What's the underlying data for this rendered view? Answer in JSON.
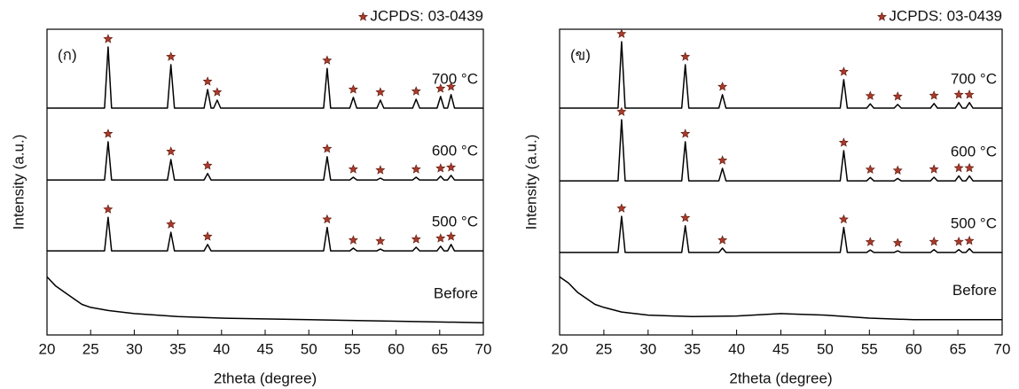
{
  "chart_data": [
    {
      "type": "line",
      "panel_label": "(ก)",
      "x_label": "2theta (degree)",
      "y_label": "Intensity (a.u.)",
      "xlim": [
        20,
        70
      ],
      "xticks": [
        20,
        25,
        30,
        35,
        40,
        45,
        50,
        55,
        60,
        65,
        70
      ],
      "ylim": [
        0,
        100
      ],
      "legend": "top-right",
      "series": [
        {
          "name": "Before",
          "color": "#000000",
          "x": [
            20,
            21,
            22,
            23,
            24,
            25,
            27,
            30,
            35,
            40,
            50,
            60,
            70
          ],
          "values": [
            19,
            16,
            14,
            12,
            10,
            9,
            8,
            7,
            6,
            5.5,
            5,
            4.5,
            4
          ]
        },
        {
          "name": "500 °C",
          "color": "#000000",
          "x": [
            20,
            26.6,
            27,
            27.4,
            33.8,
            34.2,
            34.6,
            38.0,
            38.4,
            38.8,
            51.7,
            52.1,
            52.5,
            54.7,
            55.1,
            55.5,
            57.8,
            58.2,
            58.6,
            61.9,
            62.3,
            62.7,
            64.7,
            65.1,
            65.5,
            65.9,
            66.3,
            66.7,
            70
          ],
          "values": [
            27.5,
            27.5,
            38.5,
            27.5,
            27.5,
            33.6,
            27.5,
            27.5,
            29.6,
            27.5,
            27.5,
            35.2,
            27.5,
            27.5,
            28.4,
            27.5,
            27.5,
            28.1,
            27.5,
            27.5,
            28.7,
            27.5,
            27.5,
            29.0,
            27.5,
            27.5,
            29.6,
            27.5,
            27.5
          ]
        },
        {
          "name": "600 °C",
          "color": "#000000",
          "x": [
            20,
            26.6,
            27,
            27.4,
            33.8,
            34.2,
            34.6,
            38.0,
            38.4,
            38.8,
            51.7,
            52.1,
            52.5,
            54.7,
            55.1,
            55.5,
            57.8,
            58.2,
            58.6,
            61.9,
            62.3,
            62.7,
            64.7,
            65.1,
            65.5,
            65.9,
            66.3,
            66.7,
            70
          ],
          "values": [
            50.7,
            50.7,
            63.2,
            50.7,
            50.7,
            57.4,
            50.7,
            50.7,
            52.8,
            50.7,
            50.7,
            58.3,
            50.7,
            50.7,
            51.6,
            50.7,
            50.7,
            51.3,
            50.7,
            50.7,
            51.6,
            50.7,
            50.7,
            51.9,
            50.7,
            50.7,
            52.2,
            50.7,
            50.7
          ]
        },
        {
          "name": "700 °C",
          "color": "#000000",
          "x": [
            20,
            26.6,
            27,
            27.4,
            33.8,
            34.2,
            34.6,
            38.0,
            38.4,
            38.8,
            39.1,
            39.5,
            39.9,
            51.7,
            52.1,
            52.5,
            54.7,
            55.1,
            55.5,
            57.8,
            58.2,
            58.6,
            61.9,
            62.3,
            62.7,
            64.7,
            65.1,
            65.5,
            65.9,
            66.3,
            66.7,
            70
          ],
          "values": [
            74.2,
            74.2,
            94.2,
            74.2,
            74.2,
            88.4,
            74.2,
            74.2,
            80.3,
            74.2,
            74.2,
            76.8,
            74.2,
            74.2,
            87.2,
            74.2,
            74.2,
            77.7,
            74.2,
            74.2,
            76.8,
            74.2,
            74.2,
            77.1,
            74.2,
            74.2,
            78.0,
            74.2,
            74.2,
            78.6,
            74.2,
            74.2
          ]
        },
        {
          "name": "JCPDS: 03-0439",
          "color": "#a83a2a",
          "marker": "star",
          "x": [
            27,
            34.2,
            38.4,
            52.1,
            55.1,
            58.2,
            62.3,
            65.1,
            66.3,
            27,
            34.2,
            38.4,
            52.1,
            55.1,
            58.2,
            62.3,
            65.1,
            66.3,
            27,
            34.2,
            38.4,
            39.5,
            52.1,
            55.1,
            58.2,
            62.3,
            65.1,
            66.3
          ],
          "values": [
            41.1,
            36.2,
            32.2,
            37.8,
            31.0,
            30.7,
            31.3,
            31.6,
            32.2,
            65.8,
            60.0,
            55.4,
            60.9,
            54.2,
            53.9,
            54.2,
            54.5,
            54.8,
            96.8,
            91.0,
            82.9,
            79.4,
            89.8,
            80.3,
            79.4,
            79.7,
            80.6,
            81.2
          ]
        }
      ]
    },
    {
      "type": "line",
      "panel_label": "(ข)",
      "x_label": "2theta (degree)",
      "y_label": "Intensity (a.u.)",
      "xlim": [
        20,
        70
      ],
      "xticks": [
        20,
        25,
        30,
        35,
        40,
        45,
        50,
        55,
        60,
        65,
        70
      ],
      "ylim": [
        0,
        100
      ],
      "legend": "top-right",
      "series": [
        {
          "name": "Before",
          "color": "#000000",
          "x": [
            20,
            21,
            22,
            23,
            24,
            25,
            27,
            30,
            35,
            40,
            45,
            50,
            55,
            60,
            70
          ],
          "values": [
            19,
            17,
            14,
            12,
            10,
            9,
            7.5,
            6.5,
            6,
            6.2,
            7,
            6.5,
            5.5,
            5,
            5
          ]
        },
        {
          "name": "500 °C",
          "color": "#000000",
          "x": [
            20,
            26.6,
            27,
            27.4,
            33.8,
            34.2,
            34.6,
            38.0,
            38.4,
            38.8,
            51.7,
            52.1,
            52.5,
            54.7,
            55.1,
            55.5,
            57.8,
            58.2,
            58.6,
            61.9,
            62.3,
            62.7,
            64.7,
            65.1,
            65.5,
            65.9,
            66.3,
            66.7,
            70
          ],
          "values": [
            27,
            27,
            38.8,
            27,
            27,
            35.7,
            27,
            27,
            28.4,
            27,
            27,
            35.2,
            27,
            27,
            27.8,
            27,
            27,
            27.5,
            27,
            27,
            27.9,
            27,
            27,
            27.9,
            27,
            27,
            28.2,
            27,
            27
          ]
        },
        {
          "name": "600 °C",
          "color": "#000000",
          "x": [
            20,
            26.6,
            27,
            27.4,
            33.8,
            34.2,
            34.6,
            38.0,
            38.4,
            38.8,
            51.7,
            52.1,
            52.5,
            54.7,
            55.1,
            55.5,
            57.8,
            58.2,
            58.6,
            61.9,
            62.3,
            62.7,
            64.7,
            65.1,
            65.5,
            65.9,
            66.3,
            66.7,
            70
          ],
          "values": [
            50.4,
            50.4,
            70.4,
            50.4,
            50.4,
            63.2,
            50.4,
            50.4,
            54.5,
            50.4,
            50.4,
            60.3,
            50.4,
            50.4,
            51.5,
            50.4,
            50.4,
            51.2,
            50.4,
            50.4,
            51.6,
            50.4,
            50.4,
            52.0,
            50.4,
            50.4,
            52.0,
            50.4,
            50.4
          ]
        },
        {
          "name": "700 °C",
          "color": "#000000",
          "x": [
            20,
            26.6,
            27,
            27.4,
            33.8,
            34.2,
            34.6,
            38.0,
            38.4,
            38.8,
            51.7,
            52.1,
            52.5,
            54.7,
            55.1,
            55.5,
            57.8,
            58.2,
            58.6,
            61.9,
            62.3,
            62.7,
            64.7,
            65.1,
            65.5,
            65.9,
            66.3,
            66.7,
            70
          ],
          "values": [
            74.2,
            74.2,
            95.9,
            74.2,
            74.2,
            88.4,
            74.2,
            74.2,
            78.6,
            74.2,
            74.2,
            83.5,
            74.2,
            74.2,
            75.6,
            74.2,
            74.2,
            75.4,
            74.2,
            74.2,
            75.7,
            74.2,
            74.2,
            76.0,
            74.2,
            74.2,
            76.0,
            74.2,
            74.2
          ]
        },
        {
          "name": "JCPDS: 03-0439",
          "color": "#a83a2a",
          "marker": "star",
          "x": [
            27,
            34.2,
            38.4,
            52.1,
            55.1,
            58.2,
            62.3,
            65.1,
            66.3,
            27,
            34.2,
            38.4,
            52.1,
            55.1,
            58.2,
            62.3,
            65.1,
            66.3,
            27,
            34.2,
            38.4,
            52.1,
            55.1,
            58.2,
            62.3,
            65.1,
            66.3
          ],
          "values": [
            41.4,
            38.3,
            31.0,
            37.8,
            30.4,
            30.1,
            30.5,
            30.5,
            30.8,
            73.0,
            65.8,
            57.1,
            62.9,
            54.1,
            53.8,
            54.2,
            54.6,
            54.6,
            98.5,
            91.0,
            81.2,
            86.1,
            78.2,
            78.0,
            78.3,
            78.6,
            78.6
          ]
        }
      ]
    }
  ]
}
